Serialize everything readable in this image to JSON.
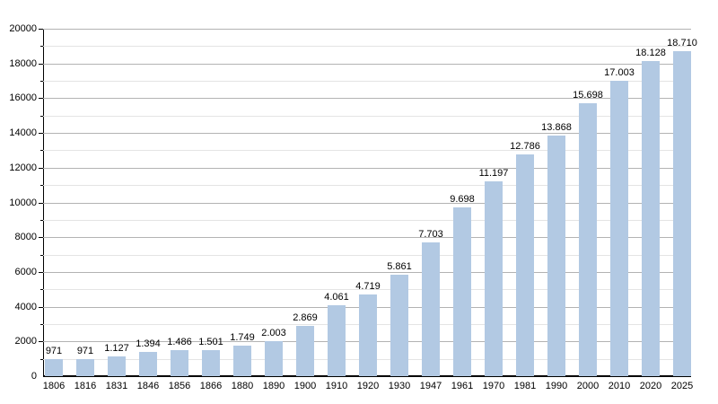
{
  "chart_data": {
    "type": "bar",
    "title": "",
    "categories": [
      "1806",
      "1816",
      "1831",
      "1846",
      "1856",
      "1866",
      "1880",
      "1890",
      "1900",
      "1910",
      "1920",
      "1930",
      "1947",
      "1961",
      "1970",
      "1981",
      "1990",
      "2000",
      "2010",
      "2020",
      "2025"
    ],
    "values": [
      971,
      971,
      1127,
      1394,
      1486,
      1501,
      1749,
      2003,
      2869,
      4061,
      4719,
      5861,
      7703,
      9698,
      11197,
      12786,
      13868,
      15698,
      17003,
      18128,
      18710
    ],
    "value_labels": [
      "971",
      "971",
      "1.127",
      "1.394",
      "1.486",
      "1.501",
      "1.749",
      "2.003",
      "2.869",
      "4.061",
      "4.719",
      "5.861",
      "7.703",
      "9.698",
      "11.197",
      "12.786",
      "13.868",
      "15.698",
      "17.003",
      "18.128",
      "18.710"
    ],
    "ylim": [
      0,
      20000
    ],
    "y_major_step": 2000,
    "y_minor_step": 1000,
    "y_tick_labels": [
      "0",
      "2000",
      "4000",
      "6000",
      "8000",
      "10000",
      "12000",
      "14000",
      "16000",
      "18000",
      "20000"
    ],
    "xlabel": "",
    "ylabel": "",
    "grid": "on",
    "legend": "none",
    "colors": {
      "bar_fill": "#b2c9e3",
      "grid_major": "#b3b3b3",
      "grid_minor": "#e4e4e4",
      "axis": "#000000",
      "text": "#000000",
      "background": "#ffffff"
    }
  }
}
